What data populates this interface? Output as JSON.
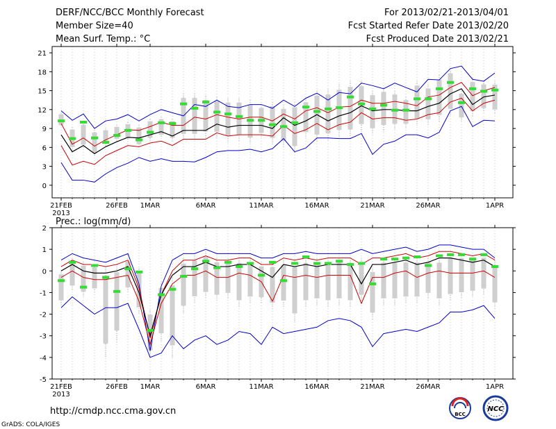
{
  "header": {
    "title": "DERF/NCC/BCC Monthly Forecast",
    "member_size": "Member Size=40",
    "variable_top": "Mean Surf. Temp.: °C",
    "forecast_period": "For 2013/02/21-2013/04/01",
    "started_refer": "Fcst Started Refer Date 2013/02/20",
    "produced": "Fcst Produced Date 2013/02/21"
  },
  "footer": {
    "url": "http://cmdp.ncc.cma.gov.cn",
    "credit": "GrADS: COLA/IGES",
    "logo_bcc": "BCC",
    "logo_ncc": "NCC"
  },
  "colors": {
    "envelope": "#0000cc",
    "spread": "#cc0000",
    "mean": "#000000",
    "obs": "#33dd33",
    "box": "#cfcfcf",
    "whisker": "#999999"
  },
  "chart_data": [
    {
      "type": "line",
      "title": "Mean Surf. Temp.: °C",
      "ylim": [
        -2,
        22
      ],
      "yticks": [
        0,
        3,
        6,
        9,
        12,
        15,
        18,
        21
      ],
      "x_tick_labels": [
        {
          "day": 0,
          "label": "21FEB"
        },
        {
          "day": 5,
          "label": "26FEB"
        },
        {
          "day": 8,
          "label": "1MAR"
        },
        {
          "day": 13,
          "label": "6MAR"
        },
        {
          "day": 18,
          "label": "11MAR"
        },
        {
          "day": 23,
          "label": "16MAR"
        },
        {
          "day": 28,
          "label": "21MAR"
        },
        {
          "day": 33,
          "label": "26MAR"
        },
        {
          "day": 39,
          "label": "1APR"
        }
      ],
      "year_label": "2013",
      "series": [
        {
          "name": "max",
          "values": [
            11.8,
            10.3,
            11.3,
            9.0,
            10.2,
            10.5,
            11.2,
            10.2,
            11.2,
            12.0,
            11.5,
            11.0,
            12.8,
            12.5,
            13.5,
            12.5,
            12.3,
            12.8,
            12.8,
            12.2,
            13.5,
            12.5,
            13.8,
            14.6,
            13.5,
            14.7,
            14.5,
            16.2,
            15.8,
            15.3,
            16.2,
            15.5,
            14.8,
            16.8,
            16.7,
            18.5,
            18.9,
            16.8,
            16.5,
            17.8
          ]
        },
        {
          "name": "upper",
          "values": [
            9.8,
            6.5,
            7.5,
            6.2,
            7.2,
            8.0,
            8.8,
            8.7,
            9.3,
            10.0,
            9.5,
            9.5,
            10.8,
            10.5,
            11.2,
            10.8,
            10.5,
            10.8,
            10.8,
            10.2,
            11.3,
            10.5,
            11.8,
            12.3,
            11.5,
            12.4,
            12.5,
            13.5,
            13.0,
            13.0,
            13.3,
            13.0,
            12.6,
            14.0,
            14.3,
            15.5,
            16.3,
            14.2,
            15.0,
            15.5
          ]
        },
        {
          "name": "mean",
          "values": [
            8.0,
            5.3,
            6.3,
            5.0,
            6.1,
            6.9,
            7.6,
            7.5,
            8.0,
            8.5,
            7.8,
            8.7,
            8.7,
            8.7,
            9.7,
            9.2,
            9.5,
            9.5,
            9.5,
            9.0,
            10.7,
            9.5,
            10.2,
            11.2,
            10.2,
            11.0,
            11.5,
            12.6,
            11.8,
            12.0,
            12.0,
            11.8,
            11.8,
            12.5,
            13.0,
            14.5,
            15.3,
            12.8,
            14.0,
            14.3
          ]
        },
        {
          "name": "lower",
          "values": [
            6.3,
            3.2,
            3.8,
            3.3,
            4.7,
            5.5,
            6.3,
            6.1,
            6.7,
            7.0,
            6.3,
            7.3,
            7.3,
            7.3,
            8.3,
            7.8,
            8.0,
            8.0,
            8.0,
            7.8,
            9.5,
            8.2,
            8.8,
            9.8,
            8.8,
            9.6,
            10.0,
            11.5,
            10.5,
            10.7,
            10.7,
            10.3,
            10.5,
            11.2,
            11.5,
            13.2,
            13.8,
            11.8,
            13.0,
            13.5
          ]
        },
        {
          "name": "min",
          "values": [
            3.6,
            0.8,
            0.8,
            0.5,
            1.8,
            2.8,
            3.5,
            4.4,
            3.8,
            4.2,
            3.8,
            3.8,
            3.7,
            4.4,
            5.3,
            5.5,
            5.5,
            5.7,
            5.3,
            5.8,
            7.4,
            5.3,
            5.9,
            7.5,
            7.5,
            7.4,
            7.4,
            8.2,
            4.9,
            6.5,
            7.0,
            8.0,
            8.0,
            7.5,
            8.4,
            11.8,
            12.5,
            9.3,
            10.3,
            10.2
          ]
        },
        {
          "name": "observed",
          "values": [
            10.2,
            7.4,
            10.0,
            7.5,
            6.8,
            7.9,
            8.7,
            7.2,
            8.4,
            9.9,
            9.8,
            12.9,
            12.2,
            13.2,
            11.6,
            11.3,
            10.9,
            10.3,
            10.3,
            9.6,
            9.3,
            9.9,
            12.4,
            11.7,
            12.1,
            12.3,
            14.0,
            12.9,
            12.1,
            12.7,
            11.9,
            11.9,
            13.7,
            13.7,
            15.3,
            16.3,
            13.1,
            15.3,
            14.9,
            15.1
          ]
        }
      ],
      "box_ranges": [
        [
          9.2,
          11.5
        ],
        [
          5.5,
          9.2
        ],
        [
          5.8,
          10.0
        ],
        [
          4.5,
          8.8
        ],
        [
          6.2,
          9.0
        ],
        [
          7.0,
          9.5
        ],
        [
          7.0,
          10.0
        ],
        [
          6.0,
          9.5
        ],
        [
          7.0,
          10.5
        ],
        [
          7.5,
          10.8
        ],
        [
          7.0,
          10.5
        ],
        [
          7.0,
          14.6
        ],
        [
          7.0,
          14.6
        ],
        [
          7.5,
          14.2
        ],
        [
          7.5,
          14.0
        ],
        [
          6.8,
          13.8
        ],
        [
          7.0,
          13.8
        ],
        [
          6.5,
          13.5
        ],
        [
          7.5,
          12.8
        ],
        [
          6.5,
          13.2
        ],
        [
          6.0,
          12.8
        ],
        [
          5.0,
          13.2
        ],
        [
          7.5,
          13.8
        ],
        [
          6.8,
          15.0
        ],
        [
          7.0,
          15.2
        ],
        [
          7.5,
          16.0
        ],
        [
          7.5,
          16.5
        ],
        [
          8.5,
          16.5
        ],
        [
          8.0,
          15.0
        ],
        [
          8.5,
          15.5
        ],
        [
          8.8,
          15.0
        ],
        [
          9.0,
          14.0
        ],
        [
          9.5,
          16.5
        ],
        [
          9.5,
          16.0
        ],
        [
          10.0,
          17.5
        ],
        [
          11.0,
          18.5
        ],
        [
          10.0,
          15.0
        ],
        [
          10.8,
          17.0
        ],
        [
          11.5,
          16.5
        ],
        [
          11.2,
          16.5
        ]
      ]
    },
    {
      "type": "line",
      "title": "Prec.: log(mm/d)",
      "ylim": [
        -5,
        2
      ],
      "yticks": [
        -5,
        -4,
        -3,
        -2,
        -1,
        0,
        1,
        2
      ],
      "x_tick_labels": [
        {
          "day": 0,
          "label": "21FEB"
        },
        {
          "day": 5,
          "label": "26FEB"
        },
        {
          "day": 8,
          "label": "1MAR"
        },
        {
          "day": 13,
          "label": "6MAR"
        },
        {
          "day": 18,
          "label": "11MAR"
        },
        {
          "day": 23,
          "label": "16MAR"
        },
        {
          "day": 28,
          "label": "21MAR"
        },
        {
          "day": 33,
          "label": "26MAR"
        },
        {
          "day": 39,
          "label": "1APR"
        }
      ],
      "year_label": "2013",
      "series": [
        {
          "name": "max",
          "values": [
            0.5,
            0.8,
            0.6,
            0.5,
            0.4,
            0.6,
            0.8,
            -0.6,
            -3.7,
            -0.7,
            0.5,
            0.8,
            0.8,
            1.0,
            0.8,
            0.8,
            0.8,
            0.8,
            0.6,
            0.6,
            0.8,
            0.8,
            0.9,
            0.8,
            0.8,
            0.8,
            0.8,
            1.0,
            0.8,
            0.9,
            1.0,
            1.1,
            0.9,
            1.0,
            1.2,
            1.2,
            1.1,
            1.0,
            1.0,
            0.6
          ]
        },
        {
          "name": "upper",
          "values": [
            0.2,
            0.5,
            0.3,
            0.3,
            0.2,
            0.3,
            0.5,
            -0.8,
            -3.1,
            -1.1,
            0.0,
            0.5,
            0.5,
            0.7,
            0.5,
            0.5,
            0.6,
            0.6,
            0.3,
            0.3,
            0.6,
            0.5,
            0.6,
            0.5,
            0.6,
            0.6,
            0.6,
            0.3,
            0.6,
            0.6,
            0.7,
            0.8,
            0.6,
            0.7,
            0.9,
            0.9,
            0.8,
            0.7,
            0.8,
            0.5
          ]
        },
        {
          "name": "mean",
          "values": [
            0.0,
            0.3,
            0.0,
            -0.1,
            -0.1,
            0.0,
            0.2,
            -1.0,
            -3.0,
            -1.1,
            -0.2,
            0.2,
            0.2,
            0.4,
            0.2,
            0.2,
            0.3,
            0.3,
            0.0,
            -0.3,
            0.3,
            0.2,
            0.3,
            0.2,
            0.3,
            0.3,
            0.3,
            -0.6,
            0.3,
            0.3,
            0.4,
            0.5,
            0.3,
            0.4,
            0.6,
            0.6,
            0.5,
            0.4,
            0.5,
            0.2
          ]
        },
        {
          "name": "lower",
          "values": [
            -0.3,
            0.0,
            -0.3,
            -0.4,
            -0.4,
            -0.3,
            -0.2,
            -1.4,
            -3.4,
            -1.5,
            -0.6,
            -0.2,
            -0.2,
            0.0,
            -0.3,
            -0.3,
            -0.1,
            -0.2,
            -0.5,
            -1.4,
            -0.2,
            -0.3,
            -0.2,
            -0.3,
            -0.2,
            -0.2,
            -0.2,
            -1.5,
            -0.3,
            -0.3,
            -0.1,
            0.0,
            -0.3,
            -0.1,
            0.0,
            -0.1,
            -0.1,
            -0.1,
            0.0,
            -0.3
          ]
        },
        {
          "name": "min",
          "values": [
            -1.7,
            -1.2,
            -1.6,
            -2.0,
            -1.7,
            -1.7,
            -1.5,
            -2.7,
            -4.0,
            -3.8,
            -3.0,
            -3.6,
            -3.2,
            -3.0,
            -3.4,
            -3.2,
            -2.8,
            -2.9,
            -3.4,
            -2.6,
            -2.9,
            -2.8,
            -2.7,
            -2.6,
            -2.3,
            -2.2,
            -2.3,
            -2.6,
            -3.5,
            -2.9,
            -2.8,
            -2.7,
            -2.8,
            -2.6,
            -2.4,
            -1.9,
            -1.9,
            -1.8,
            -1.6,
            -2.2
          ]
        },
        {
          "name": "observed",
          "values": [
            -0.45,
            0.4,
            -0.75,
            0.25,
            -0.3,
            -0.95,
            0.1,
            -0.05,
            -2.75,
            -1.1,
            -0.85,
            -0.25,
            0.1,
            0.45,
            0.15,
            0.4,
            0.2,
            0.35,
            -0.2,
            0.4,
            -0.45,
            0.35,
            0.65,
            0.35,
            0.35,
            0.45,
            0.3,
            0.35,
            -0.6,
            0.55,
            0.55,
            0.6,
            0.65,
            0.25,
            0.7,
            0.75,
            0.75,
            0.55,
            0.75,
            0.2
          ]
        }
      ],
      "box_ranges": [
        [
          -1.6,
          0.0
        ],
        [
          -0.9,
          0.6
        ],
        [
          -1.2,
          0.4
        ],
        [
          -1.0,
          0.3
        ],
        [
          -4.0,
          0.2
        ],
        [
          -3.3,
          0.3
        ],
        [
          -1.0,
          0.6
        ],
        [
          -2.0,
          0.1
        ],
        [
          -4.0,
          -1.8
        ],
        [
          -3.3,
          -0.5
        ],
        [
          -4.0,
          -0.3
        ],
        [
          -2.0,
          0.6
        ],
        [
          -1.5,
          0.7
        ],
        [
          -1.3,
          0.9
        ],
        [
          -1.4,
          0.6
        ],
        [
          -1.3,
          0.6
        ],
        [
          -1.7,
          0.6
        ],
        [
          -1.5,
          0.6
        ],
        [
          -1.5,
          0.4
        ],
        [
          -1.8,
          0.4
        ],
        [
          -1.7,
          0.5
        ],
        [
          -2.4,
          0.5
        ],
        [
          -1.7,
          0.6
        ],
        [
          -1.6,
          0.6
        ],
        [
          -1.7,
          0.6
        ],
        [
          -1.6,
          0.6
        ],
        [
          -1.7,
          0.6
        ],
        [
          -1.4,
          0.6
        ],
        [
          -2.3,
          0.2
        ],
        [
          -1.6,
          0.6
        ],
        [
          -1.6,
          0.6
        ],
        [
          -1.5,
          0.6
        ],
        [
          -1.5,
          0.6
        ],
        [
          -1.3,
          0.6
        ],
        [
          -1.6,
          0.6
        ],
        [
          -1.4,
          0.8
        ],
        [
          -1.3,
          0.8
        ],
        [
          -1.2,
          0.7
        ],
        [
          -1.1,
          0.8
        ],
        [
          -1.8,
          0.5
        ]
      ]
    }
  ]
}
